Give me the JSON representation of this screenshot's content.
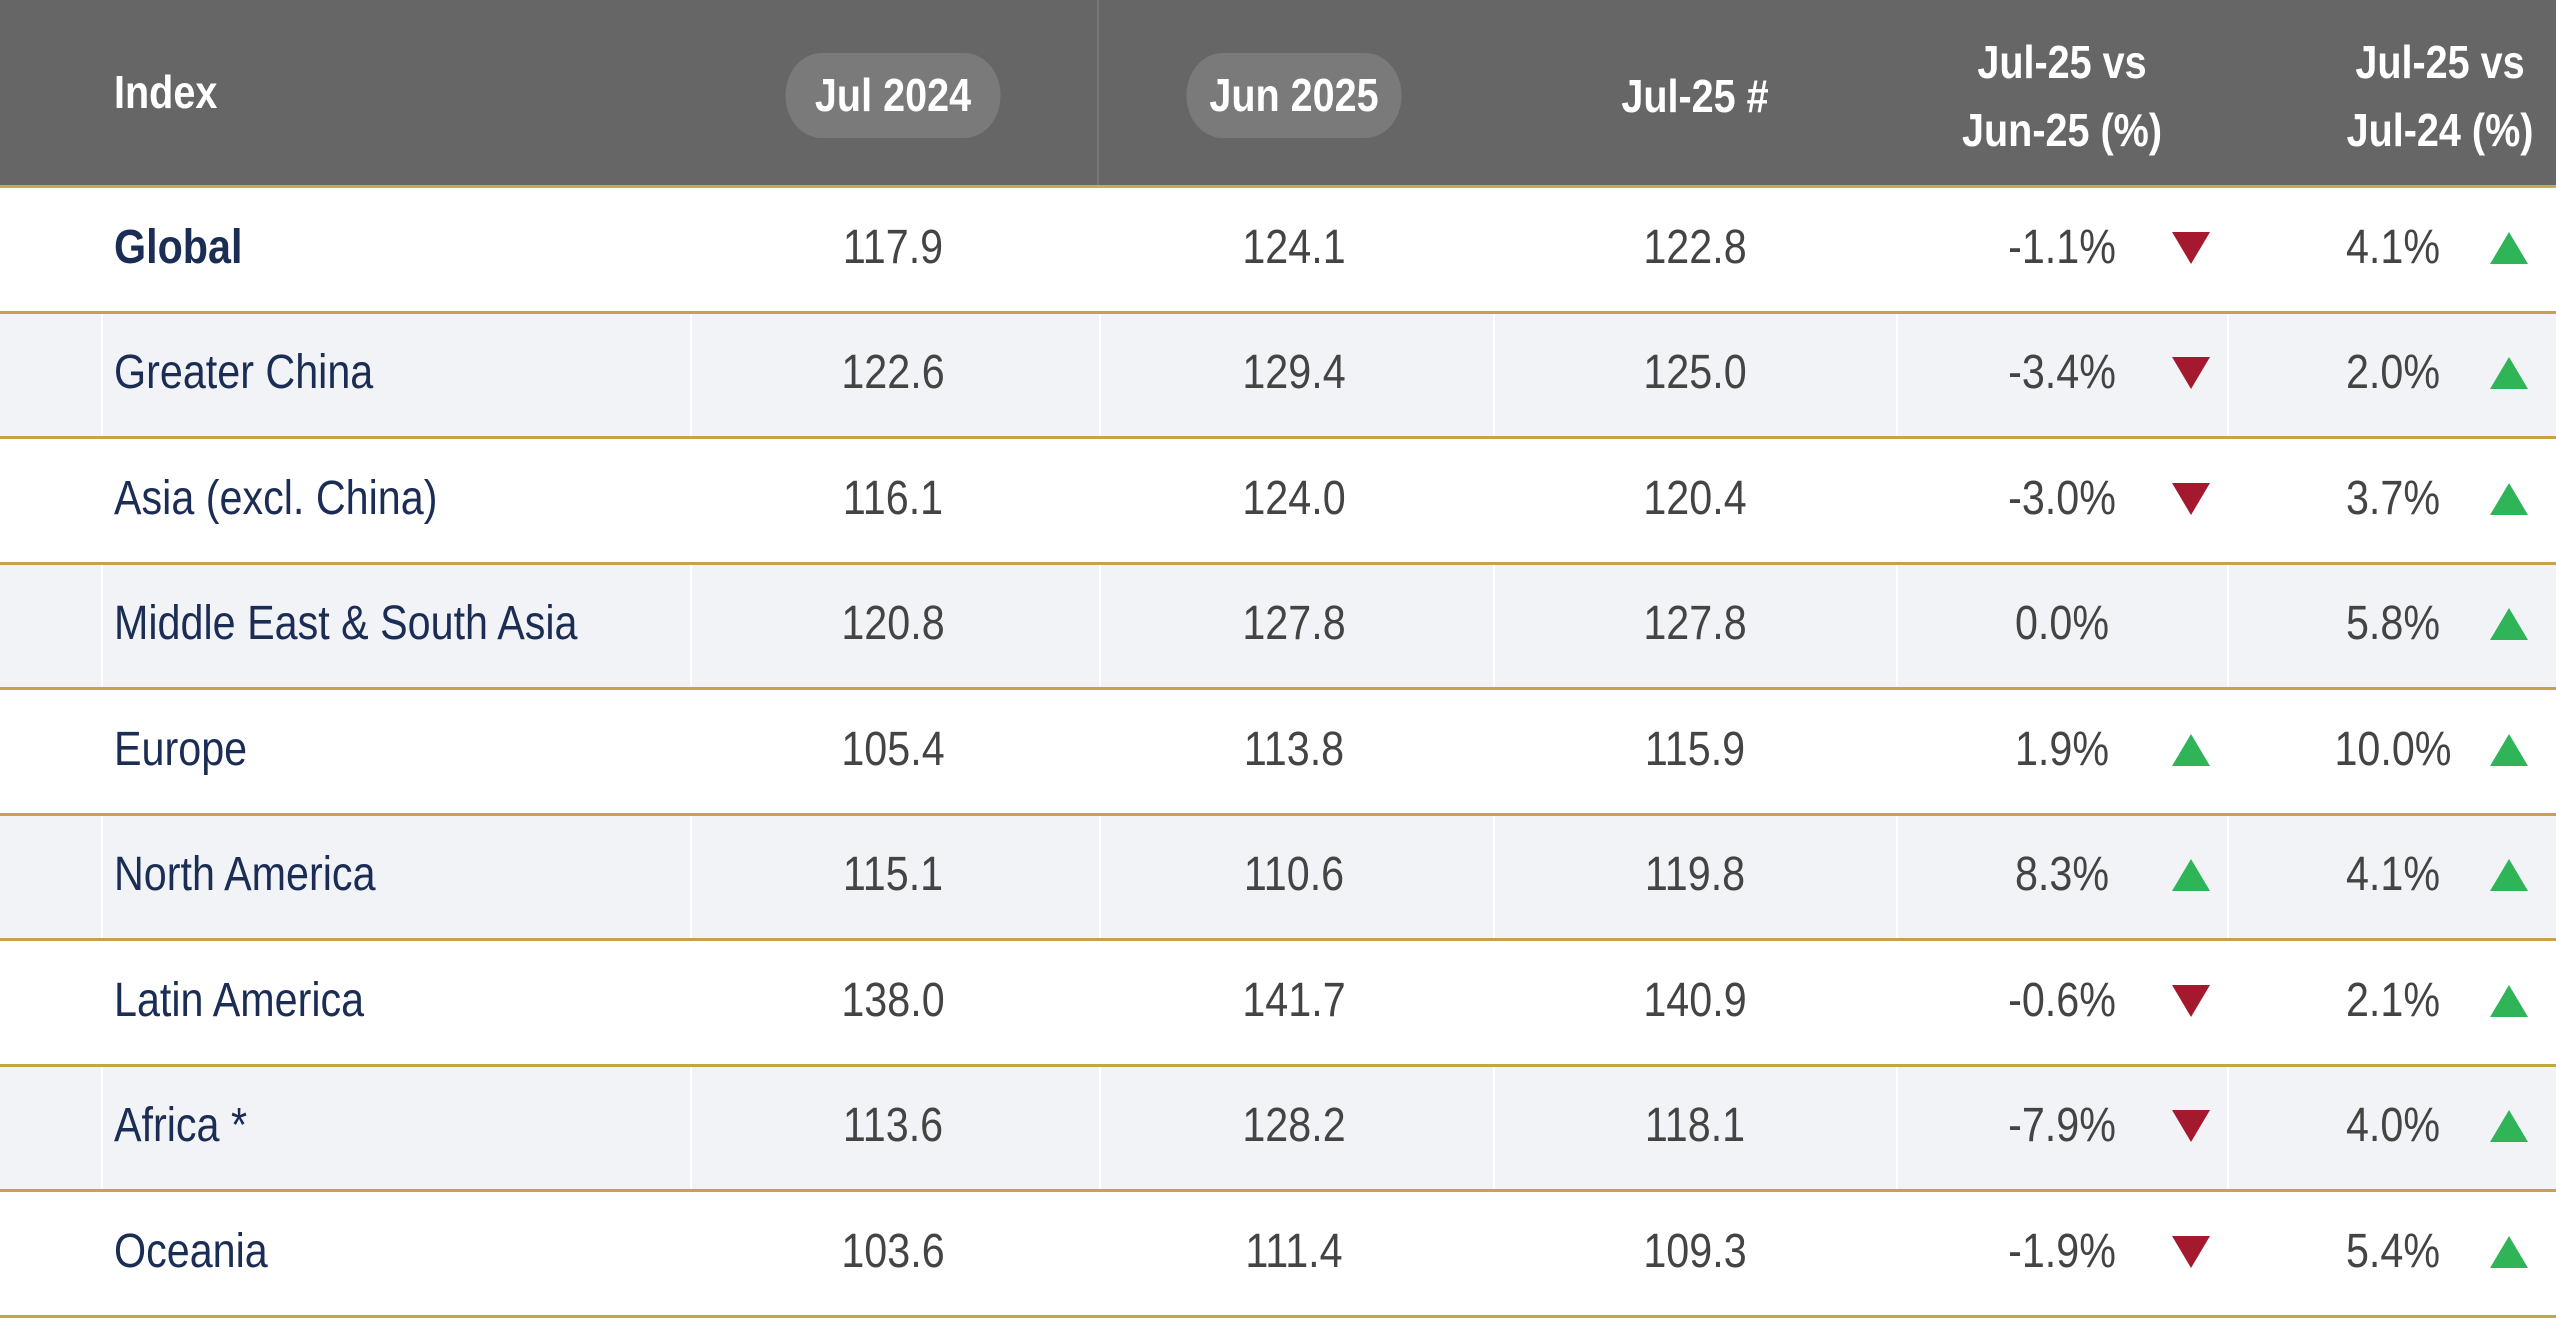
{
  "table": {
    "columns": [
      "Index",
      "Jul 2024",
      "Jun 2025",
      "Jul-25 #",
      "Jul-25 vs Jun-25 (%)",
      "Jul-25 vs Jul-24 (%)"
    ],
    "rows": [
      [
        "Global",
        "117.9",
        "124.1",
        "122.8",
        "-1.1%",
        "4.1%"
      ],
      [
        "Greater China",
        "122.6",
        "129.4",
        "125.0",
        "-3.4%",
        "2.0%"
      ],
      [
        "Asia (excl. China)",
        "116.1",
        "124.0",
        "120.4",
        "-3.0%",
        "3.7%"
      ],
      [
        "Middle East & South Asia",
        "120.8",
        "127.8",
        "127.8",
        "0.0%",
        "5.8%"
      ],
      [
        "Europe",
        "105.4",
        "113.8",
        "115.9",
        "1.9%",
        "10.0%"
      ],
      [
        "North America",
        "115.1",
        "110.6",
        "119.8",
        "8.3%",
        "4.1%"
      ],
      [
        "Latin America",
        "138.0",
        "141.7",
        "140.9",
        "-0.6%",
        "2.1%"
      ],
      [
        "Africa *",
        "113.6",
        "128.2",
        "118.1",
        "-7.9%",
        "4.0%"
      ],
      [
        "Oceania",
        "103.6",
        "111.4",
        "109.3",
        "-1.9%",
        "5.4%"
      ]
    ]
  }
}
